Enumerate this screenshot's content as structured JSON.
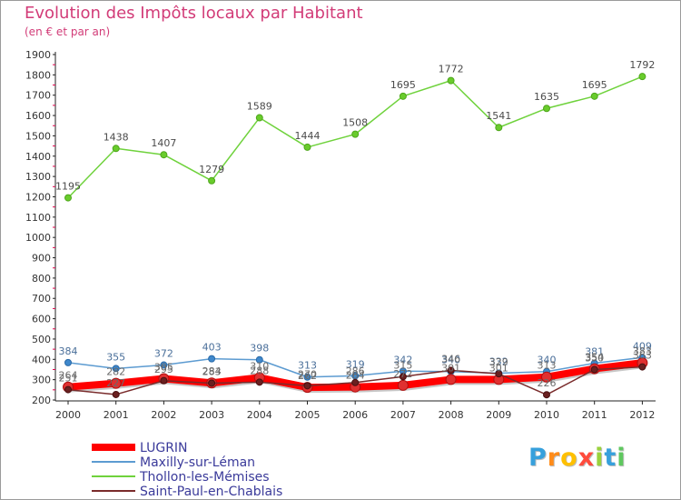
{
  "chart_data": {
    "type": "line",
    "title": "Evolution des Impôts locaux par Habitant",
    "subtitle": "(en € et par an)",
    "categories": [
      "2000",
      "2001",
      "2002",
      "2003",
      "2004",
      "2005",
      "2006",
      "2007",
      "2008",
      "2009",
      "2010",
      "2011",
      "2012"
    ],
    "ylim": [
      200,
      1900
    ],
    "yticks": [
      200,
      300,
      400,
      500,
      600,
      700,
      800,
      900,
      1000,
      1100,
      1200,
      1300,
      1400,
      1500,
      1600,
      1700,
      1800,
      1900
    ],
    "grid": false,
    "legend_position": "bottom-left",
    "series": [
      {
        "name": "LUGRIN",
        "color": "#ff0000",
        "values": [
          264,
          282,
          305,
          284,
          310,
          262,
          264,
          272,
          301,
          301,
          313,
          354,
          383
        ],
        "labels": [
          "264",
          "282",
          "305",
          "284",
          "310",
          "262",
          "264",
          "272",
          "301",
          "301",
          "313",
          "354",
          "383"
        ]
      },
      {
        "name": "Maxilly-sur-Léman",
        "color": "#5c9bd1",
        "values": [
          384,
          355,
          372,
          403,
          398,
          313,
          319,
          342,
          340,
          332,
          340,
          381,
          409
        ],
        "labels": [
          "384",
          "355",
          "372",
          "403",
          "398",
          "313",
          "319",
          "342",
          "340",
          "332",
          "340",
          "381",
          "409"
        ]
      },
      {
        "name": "Thollon-les-Mémises",
        "color": "#6fd23c",
        "values": [
          1195,
          1438,
          1407,
          1279,
          1589,
          1444,
          1508,
          1695,
          1772,
          1541,
          1635,
          1695,
          1792
        ],
        "labels": [
          "1195",
          "1438",
          "1407",
          "1279",
          "1589",
          "1444",
          "1508",
          "1695",
          "1772",
          "1541",
          "1635",
          "1695",
          "1792"
        ]
      },
      {
        "name": "Saint-Paul-en-Chablais",
        "color": "#7a2c2c",
        "values": [
          251,
          227,
          295,
          283,
          288,
          270,
          286,
          315,
          346,
          329,
          226,
          350,
          363
        ],
        "labels": [
          "251",
          "227",
          "295",
          "283",
          "288",
          "270",
          "286",
          "315",
          "346",
          "329",
          "226",
          "350",
          "363"
        ]
      }
    ]
  },
  "brand": {
    "letters": [
      "P",
      "r",
      "o",
      "x",
      "i",
      "t",
      "i"
    ],
    "colors": [
      "#37a0dc",
      "#ff8c1a",
      "#ffc000",
      "#ff4b3c",
      "#9ad23c",
      "#37a0dc",
      "#5fc85f"
    ]
  }
}
